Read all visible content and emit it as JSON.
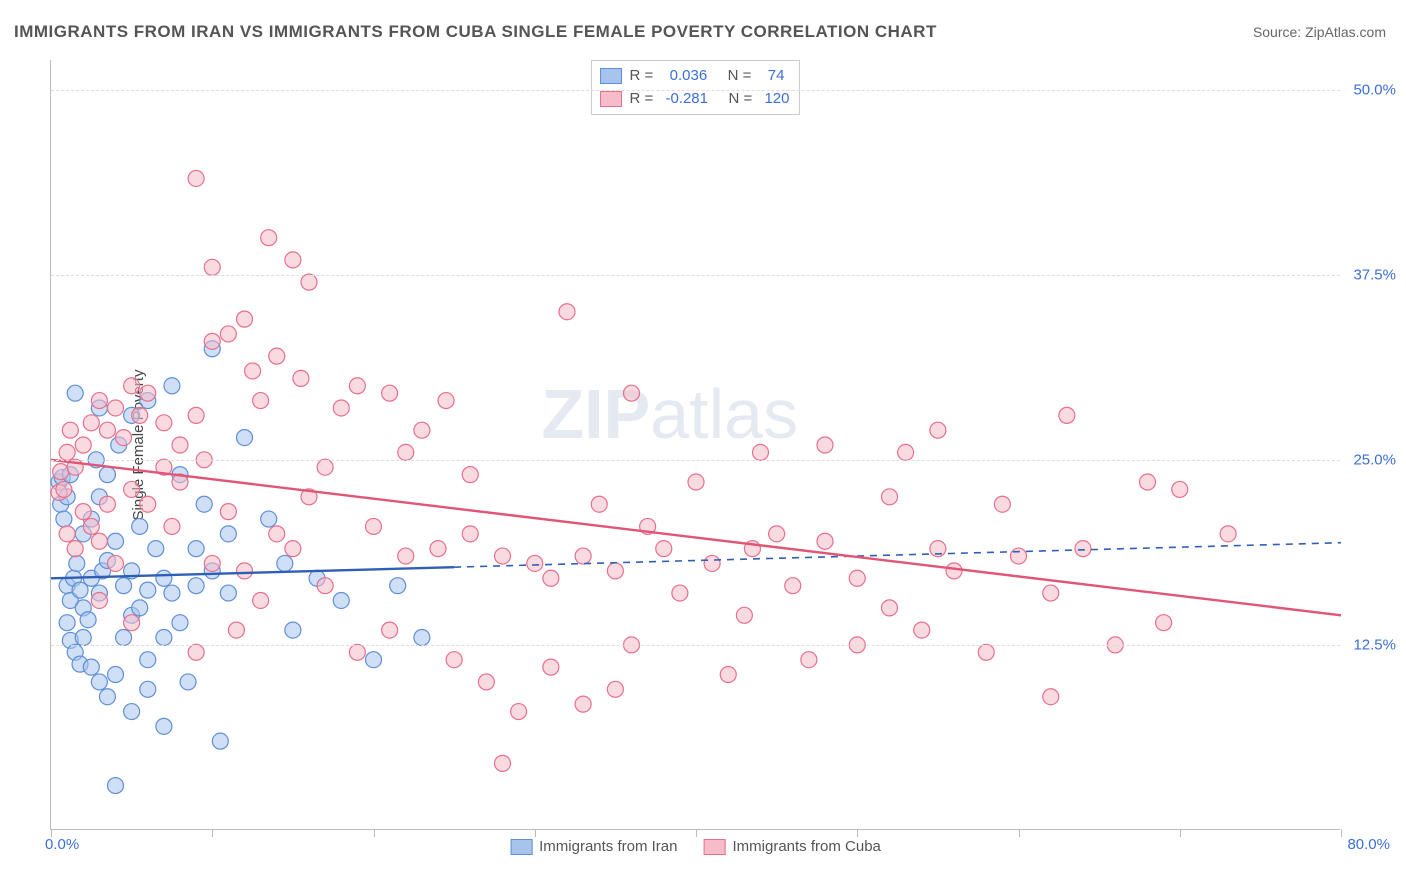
{
  "title": "IMMIGRANTS FROM IRAN VS IMMIGRANTS FROM CUBA SINGLE FEMALE POVERTY CORRELATION CHART",
  "source": "Source: ZipAtlas.com",
  "ylabel": "Single Female Poverty",
  "watermark_a": "ZIP",
  "watermark_b": "atlas",
  "chart": {
    "type": "scatter",
    "xlim": [
      0,
      80
    ],
    "ylim": [
      0,
      52
    ],
    "x_axis_labels": {
      "left": "0.0%",
      "right": "80.0%"
    },
    "x_ticks": [
      0,
      10,
      20,
      30,
      40,
      50,
      60,
      70,
      80
    ],
    "y_gridlines": [
      {
        "value": 12.5,
        "label": "12.5%"
      },
      {
        "value": 25.0,
        "label": "25.0%"
      },
      {
        "value": 37.5,
        "label": "37.5%"
      },
      {
        "value": 50.0,
        "label": "50.0%"
      }
    ],
    "background_color": "#ffffff",
    "grid_color": "#dddddd",
    "axis_color": "#bbbbbb",
    "label_color": "#3b6fd6",
    "marker_radius": 8,
    "marker_opacity": 0.55,
    "series": [
      {
        "id": "iran",
        "name": "Immigrants from Iran",
        "fill": "#a8c4ec",
        "stroke": "#5f8fd9",
        "line_color": "#2f5fb5",
        "R": "0.036",
        "N": "74",
        "trend": {
          "x1": 0,
          "y1": 17.0,
          "x2": 80,
          "y2": 19.4,
          "solid_until_x": 25
        },
        "points": [
          [
            0.5,
            23.5
          ],
          [
            0.6,
            22.0
          ],
          [
            0.7,
            23.8
          ],
          [
            0.8,
            21.0
          ],
          [
            1.0,
            22.5
          ],
          [
            1.2,
            24.0
          ],
          [
            1.0,
            16.5
          ],
          [
            1.2,
            15.5
          ],
          [
            1.4,
            17.0
          ],
          [
            1.6,
            18.0
          ],
          [
            1.8,
            16.2
          ],
          [
            2.0,
            15.0
          ],
          [
            1.0,
            14.0
          ],
          [
            1.2,
            12.8
          ],
          [
            1.5,
            12.0
          ],
          [
            1.8,
            11.2
          ],
          [
            2.0,
            13.0
          ],
          [
            2.3,
            14.2
          ],
          [
            2.5,
            17.0
          ],
          [
            3.0,
            16.0
          ],
          [
            3.2,
            17.5
          ],
          [
            3.5,
            18.2
          ],
          [
            4.0,
            19.5
          ],
          [
            4.5,
            16.5
          ],
          [
            2.5,
            11.0
          ],
          [
            3.0,
            10.0
          ],
          [
            3.5,
            9.0
          ],
          [
            4.0,
            10.5
          ],
          [
            4.5,
            13.0
          ],
          [
            5.0,
            14.5
          ],
          [
            2.0,
            20.0
          ],
          [
            2.5,
            21.0
          ],
          [
            3.0,
            22.5
          ],
          [
            2.8,
            25.0
          ],
          [
            3.5,
            24.0
          ],
          [
            4.2,
            26.0
          ],
          [
            1.5,
            29.5
          ],
          [
            5.0,
            28.0
          ],
          [
            6.0,
            29.0
          ],
          [
            7.5,
            30.0
          ],
          [
            10.0,
            32.5
          ],
          [
            3.0,
            28.5
          ],
          [
            5.0,
            17.5
          ],
          [
            5.5,
            15.0
          ],
          [
            6.0,
            16.2
          ],
          [
            6.5,
            19.0
          ],
          [
            7.0,
            17.0
          ],
          [
            7.5,
            16.0
          ],
          [
            6.0,
            11.5
          ],
          [
            7.0,
            13.0
          ],
          [
            8.0,
            14.0
          ],
          [
            9.0,
            16.5
          ],
          [
            10.0,
            17.5
          ],
          [
            11.0,
            16.0
          ],
          [
            8.0,
            24.0
          ],
          [
            9.5,
            22.0
          ],
          [
            11.0,
            20.0
          ],
          [
            12.0,
            26.5
          ],
          [
            13.5,
            21.0
          ],
          [
            14.5,
            18.0
          ],
          [
            5.0,
            8.0
          ],
          [
            6.0,
            9.5
          ],
          [
            8.5,
            10.0
          ],
          [
            10.5,
            6.0
          ],
          [
            7.0,
            7.0
          ],
          [
            4.0,
            3.0
          ],
          [
            15.0,
            13.5
          ],
          [
            16.5,
            17.0
          ],
          [
            18.0,
            15.5
          ],
          [
            20.0,
            11.5
          ],
          [
            21.5,
            16.5
          ],
          [
            23.0,
            13.0
          ],
          [
            9.0,
            19.0
          ],
          [
            5.5,
            20.5
          ]
        ]
      },
      {
        "id": "cuba",
        "name": "Immigrants from Cuba",
        "fill": "#f6bcc9",
        "stroke": "#e76f8c",
        "line_color": "#e15576",
        "R": "-0.281",
        "N": "120",
        "trend": {
          "x1": 0,
          "y1": 25.0,
          "x2": 80,
          "y2": 14.5,
          "solid_until_x": 80
        },
        "points": [
          [
            0.5,
            22.8
          ],
          [
            0.6,
            24.2
          ],
          [
            0.8,
            23.0
          ],
          [
            1.0,
            25.5
          ],
          [
            1.2,
            27.0
          ],
          [
            1.5,
            24.5
          ],
          [
            1.0,
            20.0
          ],
          [
            1.5,
            19.0
          ],
          [
            2.0,
            21.5
          ],
          [
            2.5,
            20.5
          ],
          [
            3.0,
            19.5
          ],
          [
            3.5,
            22.0
          ],
          [
            2.0,
            26.0
          ],
          [
            2.5,
            27.5
          ],
          [
            3.0,
            29.0
          ],
          [
            3.5,
            27.0
          ],
          [
            4.0,
            28.5
          ],
          [
            4.5,
            26.5
          ],
          [
            5.0,
            30.0
          ],
          [
            5.5,
            28.0
          ],
          [
            6.0,
            29.5
          ],
          [
            7.0,
            27.5
          ],
          [
            8.0,
            26.0
          ],
          [
            9.0,
            28.0
          ],
          [
            10.0,
            33.0
          ],
          [
            11.0,
            33.5
          ],
          [
            12.5,
            31.0
          ],
          [
            14.0,
            32.0
          ],
          [
            15.5,
            30.5
          ],
          [
            13.0,
            29.0
          ],
          [
            15.0,
            38.5
          ],
          [
            16.0,
            37.0
          ],
          [
            13.5,
            40.0
          ],
          [
            9.0,
            44.0
          ],
          [
            10.0,
            38.0
          ],
          [
            12.0,
            34.5
          ],
          [
            5.0,
            23.0
          ],
          [
            6.0,
            22.0
          ],
          [
            7.0,
            24.5
          ],
          [
            8.0,
            23.5
          ],
          [
            9.5,
            25.0
          ],
          [
            11.0,
            21.5
          ],
          [
            10.0,
            18.0
          ],
          [
            12.0,
            17.5
          ],
          [
            14.0,
            20.0
          ],
          [
            13.0,
            15.5
          ],
          [
            15.0,
            19.0
          ],
          [
            17.0,
            16.5
          ],
          [
            18.0,
            28.5
          ],
          [
            19.0,
            30.0
          ],
          [
            21.0,
            29.5
          ],
          [
            23.0,
            27.0
          ],
          [
            24.5,
            29.0
          ],
          [
            22.0,
            25.5
          ],
          [
            20.0,
            20.5
          ],
          [
            22.0,
            18.5
          ],
          [
            24.0,
            19.0
          ],
          [
            26.0,
            20.0
          ],
          [
            28.0,
            18.5
          ],
          [
            26.0,
            24.0
          ],
          [
            25.0,
            11.5
          ],
          [
            27.0,
            10.0
          ],
          [
            29.0,
            8.0
          ],
          [
            30.0,
            18.0
          ],
          [
            31.0,
            17.0
          ],
          [
            33.0,
            18.5
          ],
          [
            32.0,
            35.0
          ],
          [
            34.0,
            22.0
          ],
          [
            35.0,
            17.5
          ],
          [
            37.0,
            20.5
          ],
          [
            38.0,
            19.0
          ],
          [
            40.0,
            23.5
          ],
          [
            36.0,
            29.5
          ],
          [
            39.0,
            16.0
          ],
          [
            41.0,
            18.0
          ],
          [
            43.0,
            14.5
          ],
          [
            45.0,
            20.0
          ],
          [
            42.0,
            10.5
          ],
          [
            46.0,
            16.5
          ],
          [
            48.0,
            19.5
          ],
          [
            50.0,
            17.0
          ],
          [
            52.0,
            22.5
          ],
          [
            54.0,
            13.5
          ],
          [
            44.0,
            25.5
          ],
          [
            33.0,
            8.5
          ],
          [
            35.0,
            9.5
          ],
          [
            19.0,
            12.0
          ],
          [
            21.0,
            13.5
          ],
          [
            47.0,
            11.5
          ],
          [
            50.0,
            12.5
          ],
          [
            55.0,
            19.0
          ],
          [
            48.0,
            26.0
          ],
          [
            52.0,
            15.0
          ],
          [
            56.0,
            17.5
          ],
          [
            58.0,
            12.0
          ],
          [
            60.0,
            18.5
          ],
          [
            55.0,
            27.0
          ],
          [
            62.0,
            16.0
          ],
          [
            64.0,
            19.0
          ],
          [
            63.0,
            28.0
          ],
          [
            66.0,
            12.5
          ],
          [
            62.0,
            9.0
          ],
          [
            68.0,
            23.5
          ],
          [
            70.0,
            23.0
          ],
          [
            73.0,
            20.0
          ],
          [
            69.0,
            14.0
          ],
          [
            43.5,
            19.0
          ],
          [
            17.0,
            24.5
          ],
          [
            5.0,
            14.0
          ],
          [
            3.0,
            15.5
          ],
          [
            7.5,
            20.5
          ],
          [
            9.0,
            12.0
          ],
          [
            11.5,
            13.5
          ],
          [
            4.0,
            18.0
          ],
          [
            28.0,
            4.5
          ],
          [
            31.0,
            11.0
          ],
          [
            36.0,
            12.5
          ],
          [
            53.0,
            25.5
          ],
          [
            59.0,
            22.0
          ],
          [
            16.0,
            22.5
          ]
        ]
      }
    ]
  },
  "bottom_legend": [
    {
      "series": "iran",
      "label": "Immigrants from Iran"
    },
    {
      "series": "cuba",
      "label": "Immigrants from Cuba"
    }
  ]
}
